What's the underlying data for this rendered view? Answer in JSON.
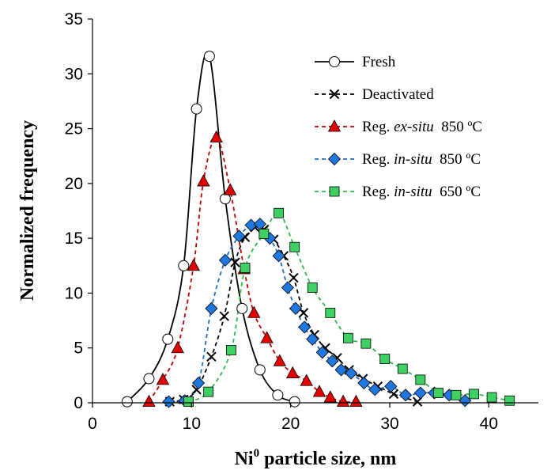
{
  "chart_data": {
    "type": "line",
    "xlabel_main": "Ni",
    "xlabel_sup": "0",
    "xlabel_rest": " particle size, nm",
    "ylabel": "Normalized frequency",
    "xlim": [
      0,
      45
    ],
    "ylim": [
      0,
      35
    ],
    "x_ticks": [
      0,
      10,
      20,
      30,
      40
    ],
    "y_ticks": [
      0,
      5,
      10,
      15,
      20,
      25,
      30,
      35
    ],
    "grid": false,
    "legend_position": "top-right",
    "series": [
      {
        "name": "Fresh",
        "legend": [
          {
            "t": "Fresh",
            "i": false
          }
        ],
        "marker": "circle",
        "marker_fill": "#ffffff",
        "marker_stroke": "#000000",
        "line_color": "#000000",
        "dash": "",
        "x": [
          3.5,
          5.7,
          7.6,
          9.2,
          10.5,
          11.8,
          13.4,
          15.1,
          16.9,
          18.7,
          20.4
        ],
        "y": [
          0.1,
          2.2,
          5.8,
          12.5,
          26.8,
          31.6,
          18.6,
          8.6,
          3.0,
          0.7,
          0.1
        ]
      },
      {
        "name": "Deactivated",
        "legend": [
          {
            "t": "Deactivated",
            "i": false
          }
        ],
        "marker": "x",
        "marker_fill": "none",
        "marker_stroke": "#000000",
        "line_color": "#000000",
        "dash": "5,4",
        "x": [
          7.8,
          9.2,
          10.5,
          12.0,
          13.3,
          14.4,
          15.4,
          16.4,
          17.3,
          18.3,
          19.3,
          20.3,
          21.3,
          22.4,
          23.5,
          24.7,
          25.9,
          27.3,
          28.8,
          30.4,
          32.8
        ],
        "y": [
          0.1,
          0.3,
          1.2,
          4.2,
          7.9,
          12.8,
          15.1,
          16.0,
          15.8,
          14.9,
          13.4,
          11.4,
          8.2,
          6.2,
          5.0,
          4.1,
          3.0,
          2.2,
          1.5,
          0.8,
          0.1
        ]
      },
      {
        "name": "Reg. ex-situ 850 ºC",
        "legend": [
          {
            "t": "Reg. ",
            "i": false
          },
          {
            "t": "ex-situ",
            "i": true
          },
          {
            "t": "  850 ºC",
            "i": false
          }
        ],
        "marker": "triangle",
        "marker_fill": "#e40000",
        "marker_stroke": "#000000",
        "line_color": "#c00000",
        "dash": "5,4",
        "x": [
          5.7,
          7.1,
          8.6,
          10.2,
          11.2,
          12.5,
          13.9,
          15.3,
          16.3,
          17.6,
          18.9,
          20.2,
          21.6,
          22.9,
          24.0,
          25.3,
          26.6
        ],
        "y": [
          0.1,
          2.1,
          5.0,
          12.5,
          20.2,
          24.2,
          19.4,
          12.2,
          8.2,
          5.9,
          3.8,
          2.7,
          2.0,
          1.0,
          0.5,
          0.1,
          0.1
        ]
      },
      {
        "name": "Reg. in-situ 850 ºC",
        "legend": [
          {
            "t": "Reg. ",
            "i": false
          },
          {
            "t": "in-situ",
            "i": true
          },
          {
            "t": "  850 ºC",
            "i": false
          }
        ],
        "marker": "diamond",
        "marker_fill": "#1f77e0",
        "marker_stroke": "#000000",
        "line_color": "#1f6fc0",
        "dash": "5,4",
        "x": [
          7.7,
          9.3,
          10.7,
          12.0,
          13.4,
          14.8,
          16.0,
          16.9,
          17.9,
          18.8,
          19.7,
          20.5,
          21.4,
          22.2,
          23.2,
          24.2,
          25.1,
          26.1,
          27.4,
          28.5,
          30.1,
          31.6,
          33.1,
          34.5,
          36.0,
          37.6
        ],
        "y": [
          0.1,
          0.2,
          1.8,
          8.6,
          13.0,
          15.2,
          16.2,
          16.3,
          15.0,
          13.4,
          10.5,
          8.6,
          6.9,
          5.8,
          4.6,
          3.8,
          3.0,
          2.7,
          1.8,
          1.2,
          1.5,
          0.7,
          0.9,
          0.9,
          0.7,
          0.2
        ]
      },
      {
        "name": "Reg. in-situ 650 ºC",
        "legend": [
          {
            "t": "Reg. ",
            "i": false
          },
          {
            "t": "in-situ",
            "i": true
          },
          {
            "t": "  650 ºC",
            "i": false
          }
        ],
        "marker": "square",
        "marker_fill": "#3fcf63",
        "marker_stroke": "#000000",
        "line_color": "#2fb84f",
        "dash": "5,4",
        "x": [
          9.7,
          11.7,
          14.0,
          15.4,
          17.3,
          18.8,
          20.4,
          22.2,
          24.0,
          25.8,
          27.6,
          29.5,
          31.3,
          33.1,
          34.9,
          36.7,
          38.5,
          40.3,
          42.1
        ],
        "y": [
          0.1,
          1.0,
          4.8,
          12.3,
          15.4,
          17.3,
          14.2,
          10.5,
          8.2,
          5.9,
          5.4,
          4.0,
          3.1,
          2.1,
          0.9,
          0.7,
          0.8,
          0.5,
          0.2
        ]
      }
    ]
  }
}
